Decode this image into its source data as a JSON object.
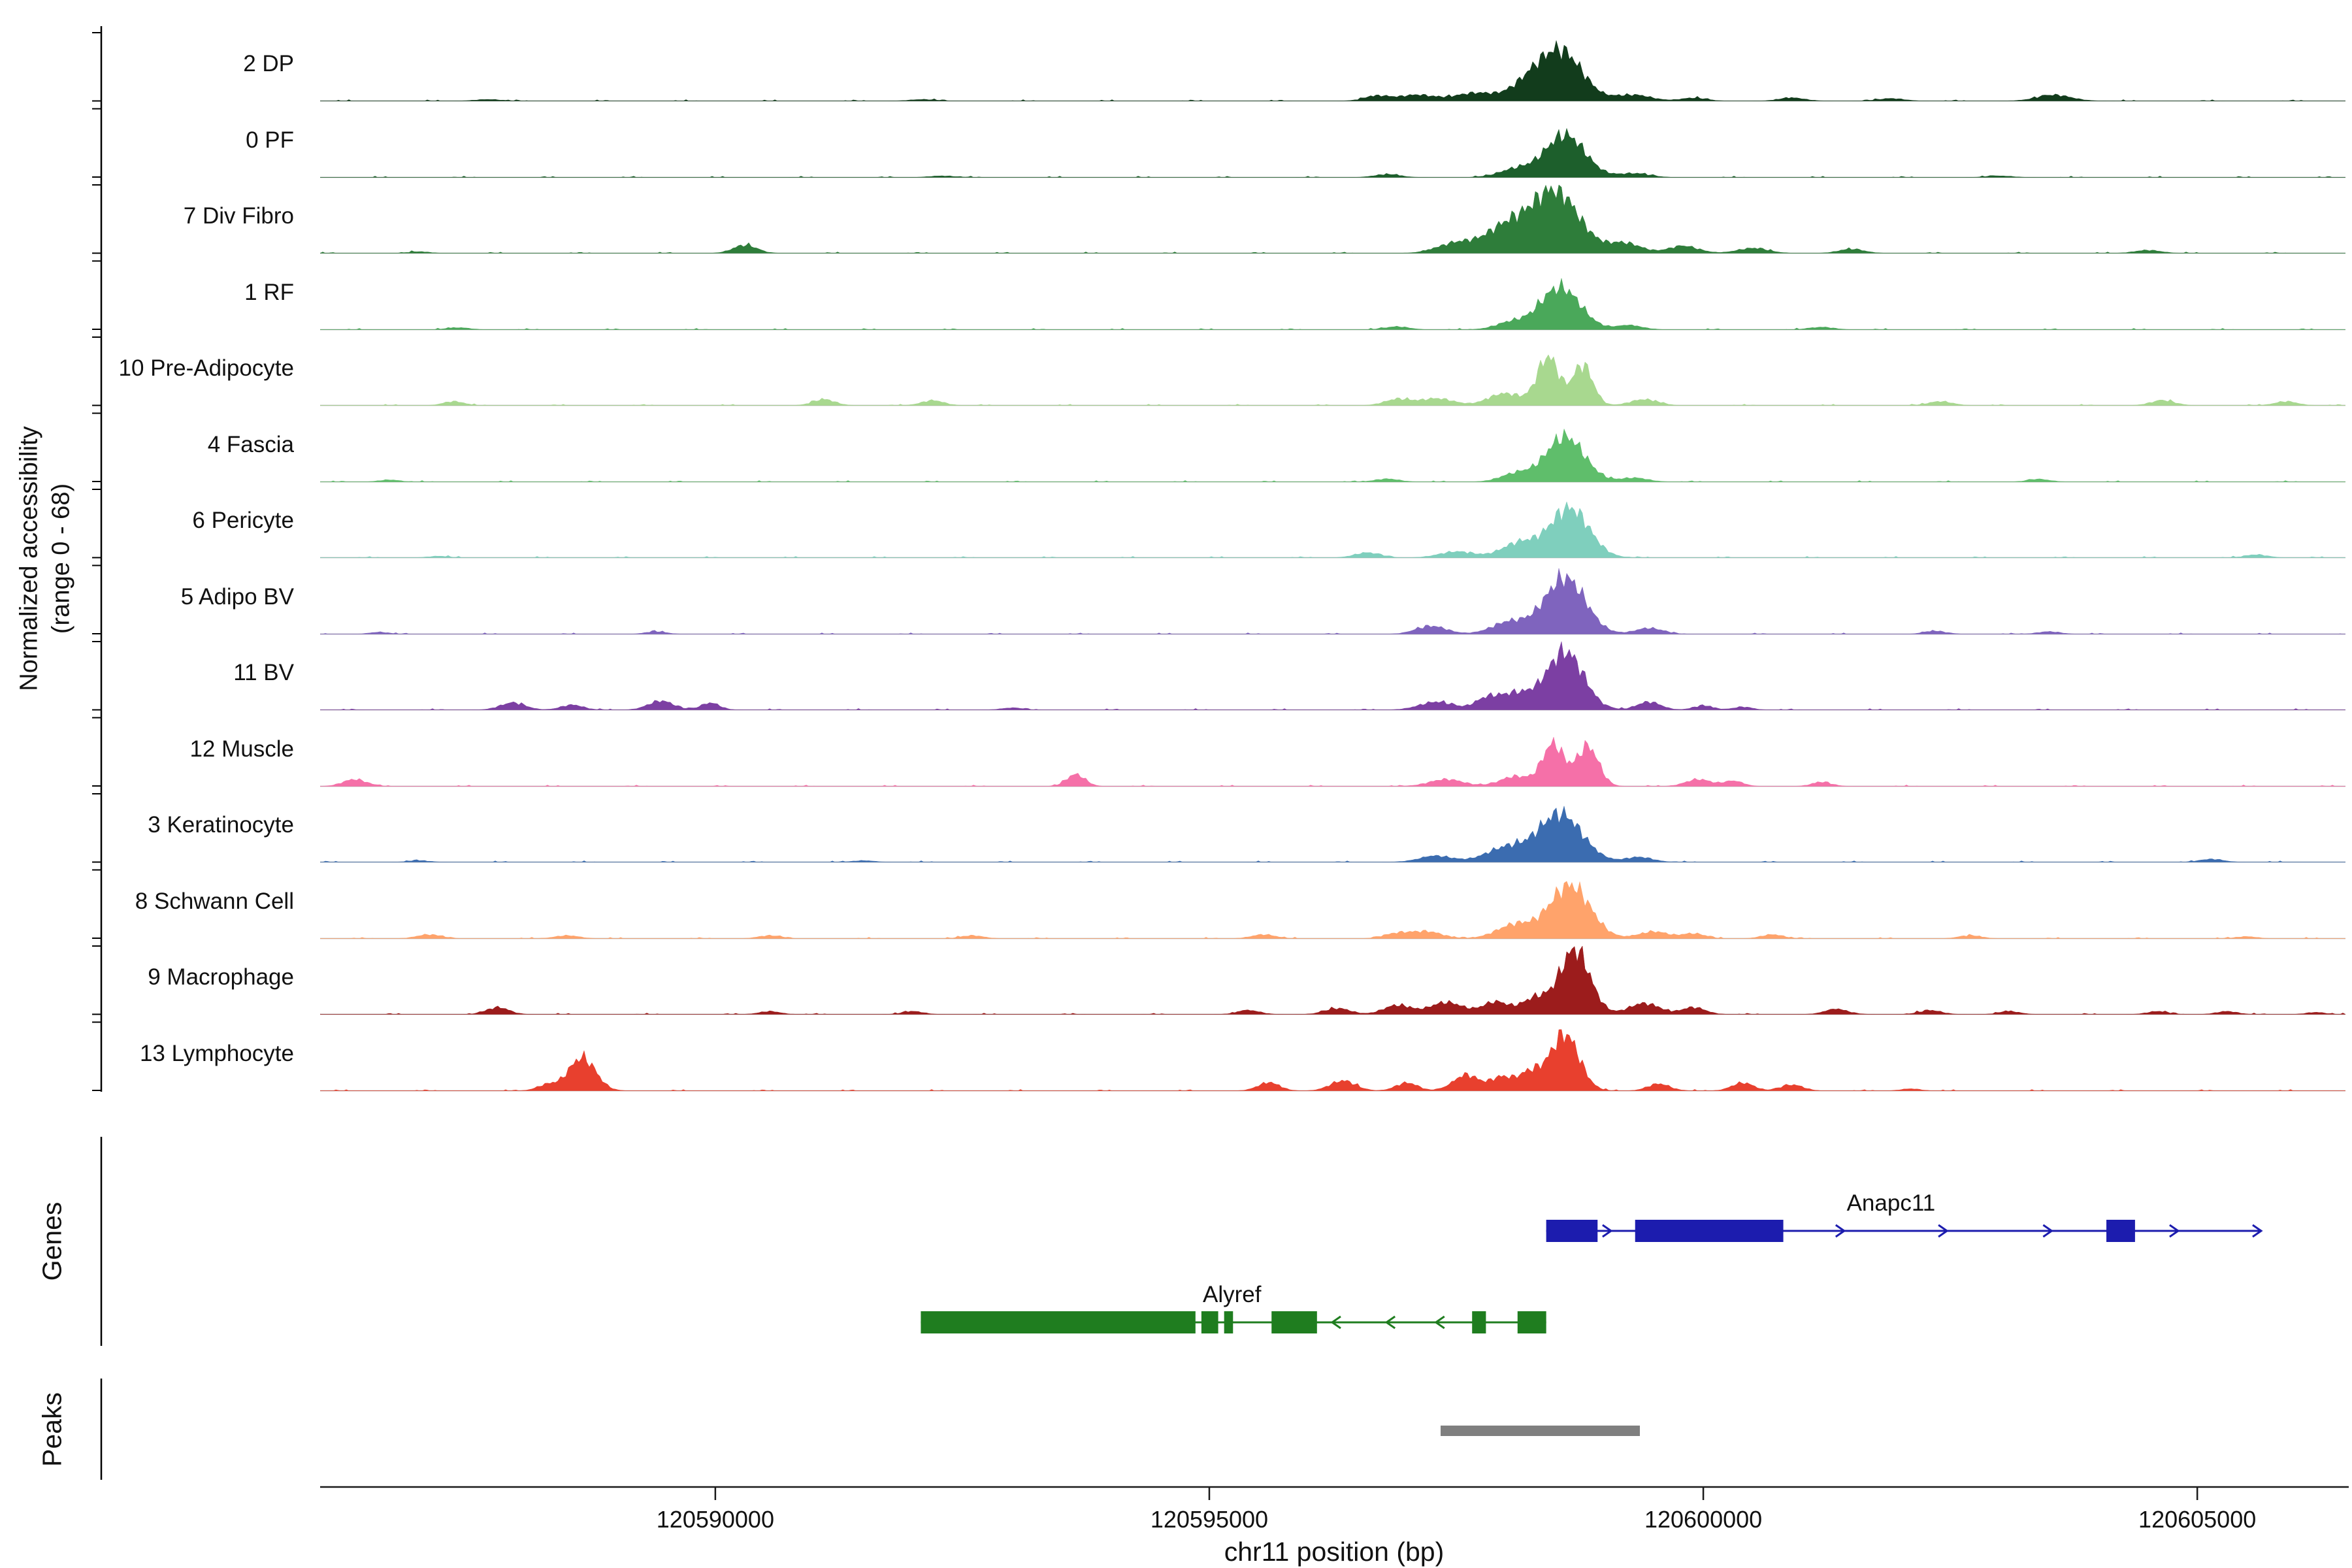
{
  "labels": {
    "ylabel_line1": "Normalized accessibility",
    "ylabel_line2": "(range 0 - 68)",
    "genes_section_label": "Genes",
    "peaks_section_label": "Peaks"
  },
  "chart_data": {
    "type": "area",
    "description": "Genome-browser style normalized chromatin accessibility coverage tracks per cell cluster on chr11, with gene models and a called peak region",
    "xlabel": "chr11 position (bp)",
    "ylabel": "Normalized accessibility (range 0 - 68)",
    "x_range": [
      120586000,
      120606500
    ],
    "x_ticks": [
      120590000,
      120595000,
      120600000,
      120605000
    ],
    "x_tick_labels": [
      "120590000",
      "120595000",
      "120600000",
      "120605000"
    ],
    "y_range_per_track": [
      0,
      68
    ],
    "grid": false,
    "tracks": [
      {
        "label": "2 DP",
        "color": "#123c1c",
        "peaks": [
          [
            120598550,
            260,
            50
          ],
          [
            120598200,
            200,
            12
          ],
          [
            120597700,
            250,
            8
          ],
          [
            120597100,
            200,
            6
          ],
          [
            120596700,
            150,
            5
          ],
          [
            120599300,
            200,
            6
          ],
          [
            120599900,
            150,
            3
          ],
          [
            120600900,
            150,
            3
          ],
          [
            120601900,
            150,
            2.5
          ],
          [
            120603550,
            200,
            6
          ],
          [
            120587700,
            150,
            1.5
          ],
          [
            120592100,
            150,
            1.5
          ]
        ]
      },
      {
        "label": "0 PF",
        "color": "#1d5f2c",
        "peaks": [
          [
            120598600,
            240,
            42
          ],
          [
            120598100,
            200,
            8
          ],
          [
            120599300,
            180,
            4
          ],
          [
            120592300,
            150,
            1.5
          ],
          [
            120603000,
            150,
            1.5
          ],
          [
            120596800,
            150,
            3
          ]
        ]
      },
      {
        "label": "7 Div Fibro",
        "color": "#2e7d3a",
        "peaks": [
          [
            120598500,
            280,
            62
          ],
          [
            120598000,
            250,
            25
          ],
          [
            120597500,
            220,
            10
          ],
          [
            120599200,
            200,
            10
          ],
          [
            120599800,
            180,
            7
          ],
          [
            120600500,
            180,
            5
          ],
          [
            120590300,
            140,
            8
          ],
          [
            120601500,
            150,
            4
          ],
          [
            120604500,
            150,
            3
          ],
          [
            120587000,
            120,
            1.5
          ]
        ]
      },
      {
        "label": "1 RF",
        "color": "#4aa85a",
        "peaks": [
          [
            120598550,
            240,
            42
          ],
          [
            120598050,
            180,
            7
          ],
          [
            120599250,
            160,
            4
          ],
          [
            120587400,
            130,
            2
          ],
          [
            120601200,
            140,
            2.5
          ],
          [
            120596900,
            140,
            3
          ]
        ]
      },
      {
        "label": "10 Pre-Adipocyte",
        "color": "#a8d88f",
        "peaks": [
          [
            120598430,
            130,
            48
          ],
          [
            120598780,
            120,
            40
          ],
          [
            120598000,
            200,
            12
          ],
          [
            120597300,
            200,
            7
          ],
          [
            120596900,
            150,
            6
          ],
          [
            120599400,
            160,
            6
          ],
          [
            120591100,
            130,
            6
          ],
          [
            120592200,
            130,
            5
          ],
          [
            120587350,
            120,
            4
          ],
          [
            120602400,
            140,
            4
          ],
          [
            120604650,
            140,
            5
          ],
          [
            120605900,
            130,
            4
          ]
        ]
      },
      {
        "label": "4 Fascia",
        "color": "#5fbe6b",
        "peaks": [
          [
            120598600,
            230,
            45
          ],
          [
            120598100,
            180,
            8
          ],
          [
            120599300,
            160,
            4
          ],
          [
            120603400,
            130,
            2.5
          ],
          [
            120586700,
            120,
            2
          ],
          [
            120596800,
            140,
            3
          ]
        ]
      },
      {
        "label": "6 Pericyte",
        "color": "#7fcfbd",
        "peaks": [
          [
            120598650,
            230,
            49
          ],
          [
            120598150,
            220,
            15
          ],
          [
            120597500,
            200,
            6
          ],
          [
            120596600,
            150,
            5
          ],
          [
            120605600,
            130,
            3
          ],
          [
            120587200,
            120,
            1.5
          ]
        ]
      },
      {
        "label": "5 Adipo BV",
        "color": "#7f64be",
        "peaks": [
          [
            120598600,
            240,
            56
          ],
          [
            120598050,
            220,
            12
          ],
          [
            120597250,
            180,
            8
          ],
          [
            120599450,
            160,
            6
          ],
          [
            120602350,
            130,
            3
          ],
          [
            120603500,
            130,
            2.5
          ],
          [
            120589400,
            120,
            2.5
          ],
          [
            120586600,
            110,
            2
          ]
        ]
      },
      {
        "label": "11 BV",
        "color": "#7c3fa3",
        "peaks": [
          [
            120598600,
            220,
            58
          ],
          [
            120598100,
            200,
            16
          ],
          [
            120597300,
            200,
            8
          ],
          [
            120597800,
            140,
            10
          ],
          [
            120599450,
            140,
            8
          ],
          [
            120600000,
            120,
            4
          ],
          [
            120587950,
            150,
            7
          ],
          [
            120588550,
            130,
            5
          ],
          [
            120589450,
            150,
            9
          ],
          [
            120589950,
            110,
            7
          ],
          [
            120593000,
            120,
            2
          ],
          [
            120600400,
            110,
            3
          ]
        ]
      },
      {
        "label": "12 Muscle",
        "color": "#f570a8",
        "peaks": [
          [
            120598480,
            130,
            42
          ],
          [
            120598830,
            130,
            40
          ],
          [
            120598100,
            180,
            10
          ],
          [
            120597400,
            200,
            7
          ],
          [
            120593650,
            110,
            12
          ],
          [
            120586350,
            140,
            7
          ],
          [
            120599950,
            150,
            7
          ],
          [
            120600300,
            120,
            5
          ],
          [
            120601200,
            120,
            4
          ]
        ]
      },
      {
        "label": "3 Keratinocyte",
        "color": "#3b6cb0",
        "peaks": [
          [
            120598550,
            260,
            48
          ],
          [
            120598000,
            240,
            14
          ],
          [
            120597300,
            200,
            6
          ],
          [
            120599350,
            160,
            5
          ],
          [
            120605150,
            130,
            3
          ],
          [
            120587000,
            120,
            1.5
          ],
          [
            120591500,
            120,
            1.5
          ]
        ]
      },
      {
        "label": "8 Schwann Cell",
        "color": "#ffa36b",
        "peaks": [
          [
            120598650,
            240,
            53
          ],
          [
            120598100,
            220,
            14
          ],
          [
            120597200,
            180,
            7
          ],
          [
            120599500,
            170,
            7
          ],
          [
            120599900,
            140,
            5
          ],
          [
            120587100,
            140,
            4
          ],
          [
            120588500,
            140,
            3
          ],
          [
            120590550,
            130,
            3
          ],
          [
            120592600,
            130,
            3
          ],
          [
            120595550,
            140,
            4
          ],
          [
            120596900,
            150,
            5
          ],
          [
            120600700,
            130,
            4
          ],
          [
            120602700,
            130,
            3
          ],
          [
            120605500,
            120,
            2
          ]
        ]
      },
      {
        "label": "9 Macrophage",
        "color": "#9c1c1c",
        "peaks": [
          [
            120598700,
            180,
            64
          ],
          [
            120598300,
            160,
            16
          ],
          [
            120597900,
            160,
            12
          ],
          [
            120597400,
            200,
            12
          ],
          [
            120596900,
            160,
            9
          ],
          [
            120596300,
            150,
            6
          ],
          [
            120599400,
            180,
            11
          ],
          [
            120599900,
            140,
            7
          ],
          [
            120587800,
            130,
            7
          ],
          [
            120590550,
            120,
            3
          ],
          [
            120592000,
            120,
            3
          ],
          [
            120595400,
            130,
            4
          ],
          [
            120601350,
            140,
            5
          ],
          [
            120602300,
            130,
            4
          ],
          [
            120603100,
            120,
            3
          ],
          [
            120604600,
            120,
            3
          ],
          [
            120605300,
            120,
            3
          ],
          [
            120606200,
            110,
            2
          ]
        ]
      },
      {
        "label": "13 Lymphocyte",
        "color": "#e8402e",
        "peaks": [
          [
            120598600,
            170,
            56
          ],
          [
            120598250,
            150,
            18
          ],
          [
            120588650,
            160,
            33
          ],
          [
            120588300,
            120,
            6
          ],
          [
            120595600,
            130,
            8
          ],
          [
            120596350,
            150,
            10
          ],
          [
            120597000,
            130,
            8
          ],
          [
            120597600,
            150,
            16
          ],
          [
            120597950,
            130,
            13
          ],
          [
            120599550,
            130,
            7
          ],
          [
            120600400,
            130,
            8
          ],
          [
            120600900,
            130,
            6
          ],
          [
            120602100,
            110,
            2
          ]
        ]
      }
    ],
    "genes": [
      {
        "name": "Anapc11",
        "strand": "+",
        "color": "#1c1cae",
        "line": [
          120598410,
          120605650
        ],
        "exons": [
          [
            120598410,
            120598930
          ],
          [
            120599310,
            120600810
          ],
          [
            120604080,
            120604370
          ]
        ],
        "arrows": [
          120599060,
          120601420,
          120602460,
          120603520,
          120604800,
          120605640
        ],
        "label_bp": 120601900
      },
      {
        "name": "Alyref",
        "strand": "-",
        "color": "#1f7d1f",
        "line": [
          120592080,
          120598410
        ],
        "exons": [
          [
            120592080,
            120594860
          ],
          [
            120594920,
            120595090
          ],
          [
            120595150,
            120595240
          ],
          [
            120595630,
            120596090
          ],
          [
            120597660,
            120597800
          ],
          [
            120598120,
            120598410
          ]
        ],
        "arrows": [
          120596250,
          120596800,
          120597300
        ],
        "label_bp": 120595230
      }
    ],
    "peaks_regions": [
      {
        "start": 120597340,
        "end": 120599360,
        "color": "#7f7f7f"
      }
    ]
  }
}
